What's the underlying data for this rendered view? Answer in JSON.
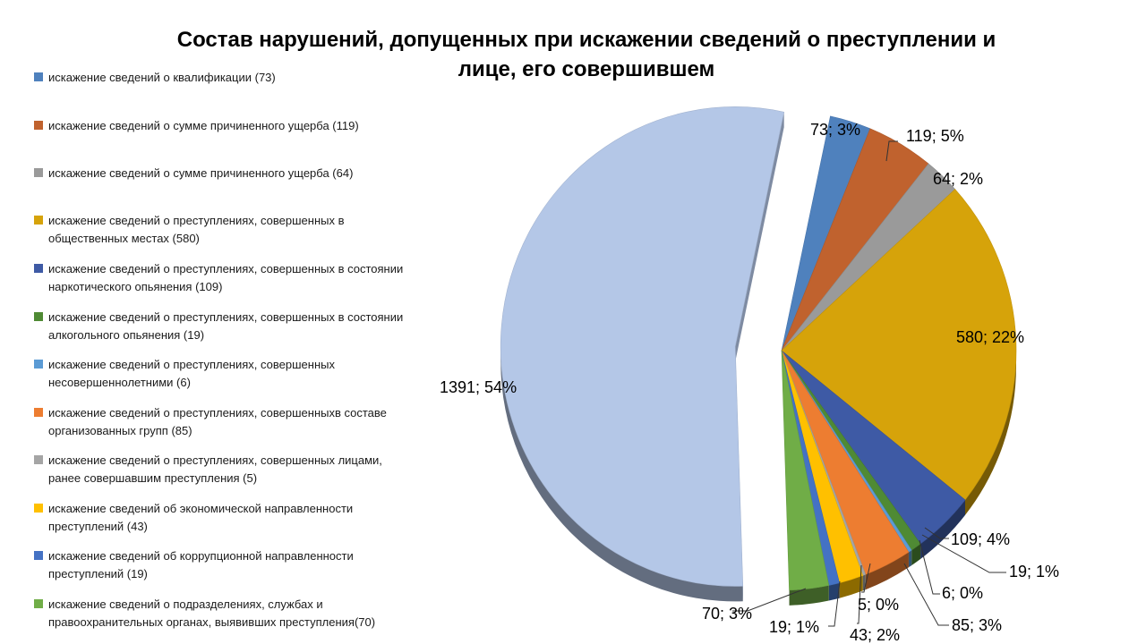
{
  "chart_data": {
    "type": "pie",
    "title": "Состав нарушений, допущенных при искажении сведений о преступлении и лице, его совершившем",
    "legend_position": "left",
    "series": [
      {
        "label": "искажение сведений о квалификации (73)",
        "value": 73,
        "data_label": "73; 3%",
        "color": "#4f81bd"
      },
      {
        "label": "искажение сведений о сумме причиненного ущерба (119)",
        "value": 119,
        "data_label": "119; 5%",
        "color": "#c0622e"
      },
      {
        "label": "искажение сведений о сумме причиненного ущерба (64)",
        "value": 64,
        "data_label": "64; 2%",
        "color": "#9a9a9a"
      },
      {
        "label": "искажение сведений о преступлениях, совершенных в общественных местах (580)",
        "value": 580,
        "data_label": "580; 22%",
        "color": "#d6a30a"
      },
      {
        "label": "искажение сведений о преступлениях, совершенных в состоянии наркотического опьянения (109)",
        "value": 109,
        "data_label": "109; 4%",
        "color": "#3e5aa5"
      },
      {
        "label": "искажение сведений о преступлениях, совершенных в состоянии алкогольного опьянения (19)",
        "value": 19,
        "data_label": "19; 1%",
        "color": "#4f8a34"
      },
      {
        "label": "искажение сведений о преступлениях, совершенных несовершеннолетними (6)",
        "value": 6,
        "data_label": "6; 0%",
        "color": "#5b9bd5"
      },
      {
        "label": "искажение сведений о преступлениях, совершенныхв составе организованных групп (85)",
        "value": 85,
        "data_label": "85; 3%",
        "color": "#ed7d31"
      },
      {
        "label": "искажение сведений о преступлениях, совершенных лицами, ранее совершавшим преступления (5)",
        "value": 5,
        "data_label": "5; 0%",
        "color": "#a5a5a5"
      },
      {
        "label": "искажение сведений об экономической направленности преступлений (43)",
        "value": 43,
        "data_label": "43; 2%",
        "color": "#ffc000"
      },
      {
        "label": "искажение сведений об коррупционной направленности преступлений (19)",
        "value": 19,
        "data_label": "19; 1%",
        "color": "#4472c4"
      },
      {
        "label": "искажение сведений о подразделениях, службах и правоохранительных органах, выявивших преступления(70)",
        "value": 70,
        "data_label": "70; 3%",
        "color": "#70ad47"
      },
      {
        "label": "",
        "value": 1391,
        "data_label": "1391; 54%",
        "color": "#b4c7e7"
      }
    ]
  }
}
